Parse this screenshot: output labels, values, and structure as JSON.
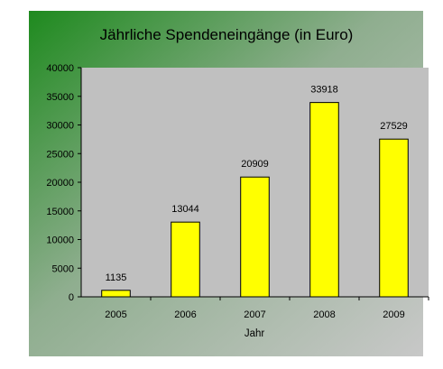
{
  "chart_data": {
    "type": "bar",
    "title": "Jährliche Spendeneingänge (in Euro)",
    "xlabel": "Jahr",
    "ylabel": "",
    "categories": [
      "2005",
      "2006",
      "2007",
      "2008",
      "2009"
    ],
    "values": [
      1135,
      13044,
      20909,
      33918,
      27529
    ],
    "data_labels": [
      "1135",
      "13044",
      "20909",
      "33918",
      "27529"
    ],
    "ylim": [
      0,
      40000
    ],
    "yticks": [
      0,
      5000,
      10000,
      15000,
      20000,
      25000,
      30000,
      35000,
      40000
    ],
    "ytick_labels": [
      "0",
      "5000",
      "10000",
      "15000",
      "20000",
      "25000",
      "30000",
      "35000",
      "40000"
    ],
    "grid": false,
    "legend": "none",
    "colors": {
      "bar_fill": "#ffff00",
      "bar_stroke": "#000000",
      "plot_background": "#c0c0c0",
      "panel_gradient_start": "#1e8a1e",
      "panel_gradient_end": "#c8c8c8"
    }
  }
}
